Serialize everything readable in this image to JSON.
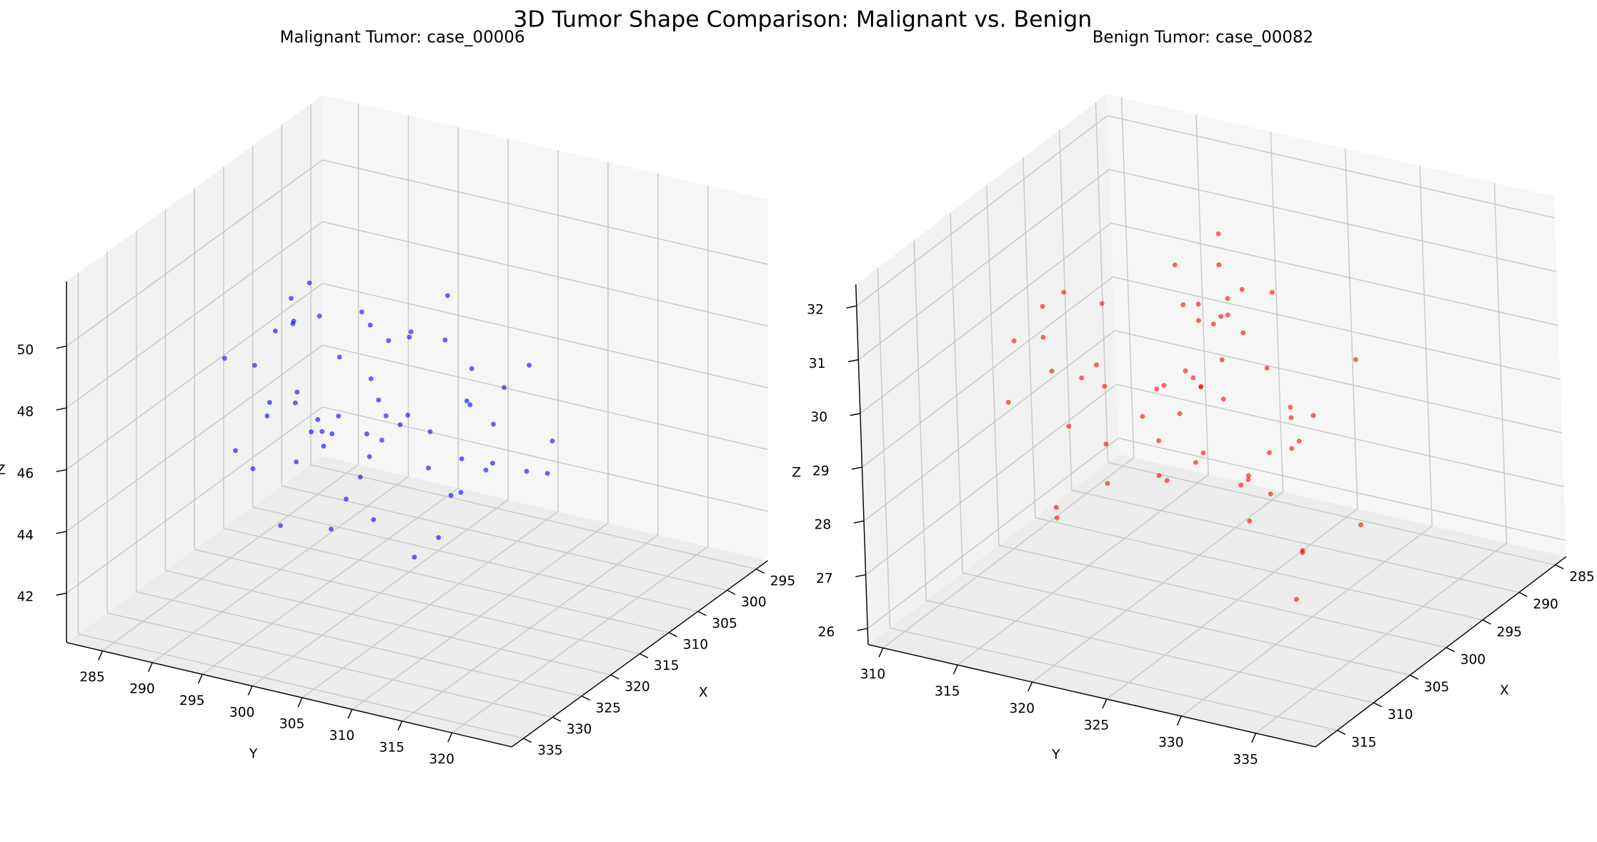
{
  "title": "3D Tumor Shape Comparison: Malignant vs. Benign",
  "chart_data": [
    {
      "type": "scatter3d",
      "title": "Malignant Tumor: case_00006",
      "color": "#0000ff",
      "xlabel": "X",
      "ylabel": "Y",
      "zlabel": "Z",
      "xlim": [
        293,
        337
      ],
      "ylim": [
        281.4,
        326
      ],
      "zlim": [
        40.4,
        52.1
      ],
      "xticks": [
        295,
        300,
        305,
        310,
        315,
        320,
        325,
        330,
        335
      ],
      "yticks": [
        285,
        290,
        295,
        300,
        305,
        310,
        315,
        320
      ],
      "zticks": [
        42,
        44,
        46,
        48,
        50
      ],
      "x": [
        305,
        308,
        310,
        312,
        314,
        316,
        318,
        320,
        322,
        324,
        306,
        309,
        311,
        313,
        315,
        317,
        319,
        321,
        323,
        325,
        304,
        307,
        310,
        313,
        316,
        319,
        322,
        326,
        303,
        327,
        308,
        311,
        314,
        317,
        320,
        312,
        315,
        318,
        309,
        321,
        305,
        310,
        315,
        320,
        325,
        307,
        313,
        319,
        311,
        317,
        314,
        316,
        312,
        318,
        310,
        320,
        308,
        322,
        315,
        313
      ],
      "y": [
        290,
        295,
        300,
        305,
        310,
        288,
        293,
        298,
        303,
        308,
        312,
        286,
        292,
        297,
        302,
        307,
        311,
        289,
        296,
        301,
        306,
        310,
        291,
        299,
        304,
        294,
        300,
        298,
        302,
        297,
        287,
        309,
        296,
        301,
        306,
        292,
        298,
        313,
        303,
        295,
        299,
        290,
        305,
        310,
        300,
        294,
        308,
        291,
        297,
        302,
        300,
        285,
        315,
        289,
        312,
        296,
        304,
        293,
        299,
        307
      ],
      "z": [
        44,
        46,
        48,
        50,
        45,
        47,
        49,
        43,
        46,
        48,
        45,
        47,
        44,
        49,
        46,
        43,
        48,
        45,
        50,
        47,
        46,
        44,
        48,
        45,
        42,
        47,
        49,
        46,
        45,
        44,
        48,
        46,
        43,
        47,
        50,
        45,
        44,
        46,
        48,
        47,
        43,
        49,
        46,
        45,
        47,
        44,
        48,
        46,
        42,
        49,
        46,
        47,
        45,
        44,
        48,
        46,
        43,
        47,
        49,
        45
      ]
    },
    {
      "type": "scatter3d",
      "title": "Benign Tumor: case_00082",
      "color": "#ff0000",
      "xlabel": "X",
      "ylabel": "Y",
      "zlabel": "Z",
      "xlim": [
        283.5,
        318
      ],
      "ylim": [
        309,
        339
      ],
      "zlim": [
        25.7,
        32.4
      ],
      "xticks": [
        285,
        290,
        295,
        300,
        305,
        310,
        315
      ],
      "yticks": [
        310,
        315,
        320,
        325,
        330,
        335
      ],
      "zticks": [
        26,
        27,
        28,
        29,
        30,
        31,
        32
      ],
      "x": [
        290,
        293,
        296,
        299,
        302,
        305,
        308,
        291,
        294,
        297,
        300,
        303,
        306,
        289,
        292,
        295,
        298,
        301,
        304,
        307,
        288,
        310,
        296,
        299,
        302,
        293,
        305,
        297,
        300,
        294,
        291,
        304,
        298,
        301,
        295,
        308,
        290,
        303,
        299,
        296,
        292,
        306,
        300,
        297,
        294,
        302,
        289,
        309,
        298,
        301,
        295,
        303,
        297,
        300,
        293,
        306,
        299,
        296,
        302,
        298
      ],
      "y": [
        315,
        318,
        321,
        324,
        327,
        330,
        314,
        317,
        320,
        323,
        326,
        329,
        316,
        319,
        322,
        325,
        328,
        313,
        331,
        320,
        322,
        318,
        324,
        316,
        327,
        321,
        319,
        323,
        325,
        317,
        329,
        315,
        322,
        326,
        320,
        318,
        324,
        312,
        333,
        321,
        319,
        323,
        316,
        328,
        322,
        320,
        325,
        317,
        321,
        330,
        314,
        324,
        319,
        322,
        326,
        318,
        320,
        327,
        315,
        323
      ],
      "z": [
        27,
        28,
        29,
        30,
        31,
        28.5,
        29.5,
        30.5,
        27.5,
        31.5,
        28,
        29,
        30,
        31,
        27,
        29.5,
        28.5,
        30.5,
        26.5,
        29,
        30,
        28,
        31,
        29,
        27.5,
        30,
        28,
        29,
        31,
        28.5,
        29.5,
        27,
        30.5,
        28,
        29,
        31.8,
        28,
        30,
        27.5,
        29,
        30,
        28.5,
        29.5,
        26.5,
        30.5,
        29,
        28,
        31,
        29.5,
        27,
        30,
        28.5,
        29,
        31,
        28,
        30,
        27.5,
        29,
        28.5,
        30.5
      ]
    }
  ]
}
